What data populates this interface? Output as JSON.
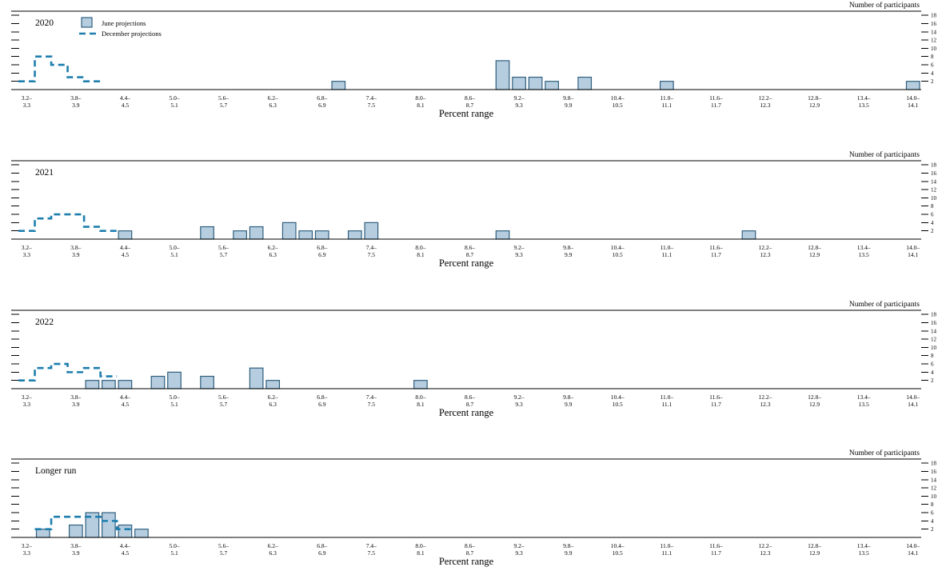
{
  "figure": {
    "right_axis_label": "Number of participants",
    "x_axis_label": "Percent range",
    "legend": [
      {
        "key": "june",
        "label": "June projections"
      },
      {
        "key": "december",
        "label": "December projections"
      }
    ],
    "colors": {
      "june_bar_fill": "#b5cddf",
      "june_bar_stroke": "#2f5f7e",
      "december_line": "#1d7eae",
      "axis": "#000000"
    },
    "y_axis": {
      "ticks": [
        2,
        4,
        6,
        8,
        10,
        12,
        14,
        16,
        18
      ],
      "max_units": 19
    },
    "x_axis": {
      "bin_start": 3.2,
      "bin_step": 0.2,
      "bin_count": 55,
      "tick_labels": [
        "3.2–3.3",
        "3.8–3.9",
        "4.4–4.5",
        "5.0–5.1",
        "5.6–5.7",
        "6.2–6.3",
        "6.8–6.9",
        "7.4–7.5",
        "8.0–8.1",
        "8.6–8.7",
        "9.2–9.3",
        "9.8–9.9",
        "10.4–10.5",
        "11.0–11.1",
        "11.6–11.7",
        "12.2–12.3",
        "12.8–12.9",
        "13.4–13.5",
        "14.0–14.1"
      ]
    }
  },
  "chart_data": [
    {
      "type": "bar",
      "title": "2020",
      "show_legend": true,
      "xlabel": "Percent range",
      "ylabel": "Number of participants",
      "ylim": [
        0,
        19
      ],
      "series": [
        {
          "name": "June projections",
          "style": "bars",
          "points": [
            {
              "range": "7.0–7.1",
              "count": 2
            },
            {
              "range": "9.0–9.1",
              "count": 7
            },
            {
              "range": "9.2–9.3",
              "count": 3
            },
            {
              "range": "9.4–9.5",
              "count": 3
            },
            {
              "range": "9.6–9.7",
              "count": 2
            },
            {
              "range": "10.0–10.1",
              "count": 3
            },
            {
              "range": "11.0–11.1",
              "count": 2
            },
            {
              "range": "14.0–14.1",
              "count": 2
            }
          ]
        },
        {
          "name": "December projections",
          "style": "dashed-step",
          "points": [
            {
              "range": "3.2–3.3",
              "count": 2
            },
            {
              "range": "3.4–3.5",
              "count": 8
            },
            {
              "range": "3.6–3.7",
              "count": 6
            },
            {
              "range": "3.8–3.9",
              "count": 3
            },
            {
              "range": "4.0–4.1",
              "count": 2
            }
          ]
        }
      ]
    },
    {
      "type": "bar",
      "title": "2021",
      "show_legend": false,
      "xlabel": "Percent range",
      "ylabel": "Number of participants",
      "ylim": [
        0,
        19
      ],
      "series": [
        {
          "name": "June projections",
          "style": "bars",
          "points": [
            {
              "range": "4.4–4.5",
              "count": 2
            },
            {
              "range": "5.4–5.5",
              "count": 3
            },
            {
              "range": "5.8–5.9",
              "count": 2
            },
            {
              "range": "6.0–6.1",
              "count": 3
            },
            {
              "range": "6.4–6.5",
              "count": 4
            },
            {
              "range": "6.6–6.7",
              "count": 2
            },
            {
              "range": "6.8–6.9",
              "count": 2
            },
            {
              "range": "7.2–7.3",
              "count": 2
            },
            {
              "range": "7.4–7.5",
              "count": 4
            },
            {
              "range": "9.0–9.1",
              "count": 2
            },
            {
              "range": "12.0–12.1",
              "count": 2
            }
          ]
        },
        {
          "name": "December projections",
          "style": "dashed-step",
          "points": [
            {
              "range": "3.2–3.3",
              "count": 2
            },
            {
              "range": "3.4–3.5",
              "count": 5
            },
            {
              "range": "3.6–3.7",
              "count": 6
            },
            {
              "range": "3.8–3.9",
              "count": 6
            },
            {
              "range": "4.0–4.1",
              "count": 3
            },
            {
              "range": "4.2–4.3",
              "count": 2
            }
          ]
        }
      ]
    },
    {
      "type": "bar",
      "title": "2022",
      "show_legend": false,
      "xlabel": "Percent range",
      "ylabel": "Number of participants",
      "ylim": [
        0,
        19
      ],
      "series": [
        {
          "name": "June projections",
          "style": "bars",
          "points": [
            {
              "range": "4.0–4.1",
              "count": 2
            },
            {
              "range": "4.2–4.3",
              "count": 2
            },
            {
              "range": "4.4–4.5",
              "count": 2
            },
            {
              "range": "4.8–4.9",
              "count": 3
            },
            {
              "range": "5.0–5.1",
              "count": 4
            },
            {
              "range": "5.4–5.5",
              "count": 3
            },
            {
              "range": "6.0–6.1",
              "count": 5
            },
            {
              "range": "6.2–6.3",
              "count": 2
            },
            {
              "range": "8.0–8.1",
              "count": 2
            }
          ]
        },
        {
          "name": "December projections",
          "style": "dashed-step",
          "points": [
            {
              "range": "3.2–3.3",
              "count": 2
            },
            {
              "range": "3.4–3.5",
              "count": 5
            },
            {
              "range": "3.6–3.7",
              "count": 6
            },
            {
              "range": "3.8–3.9",
              "count": 4
            },
            {
              "range": "4.0–4.1",
              "count": 5
            },
            {
              "range": "4.2–4.3",
              "count": 3
            }
          ]
        }
      ]
    },
    {
      "type": "bar",
      "title": "Longer run",
      "show_legend": false,
      "xlabel": "Percent range",
      "ylabel": "Number of participants",
      "ylim": [
        0,
        19
      ],
      "series": [
        {
          "name": "June projections",
          "style": "bars",
          "points": [
            {
              "range": "3.4–3.5",
              "count": 2
            },
            {
              "range": "3.8–3.9",
              "count": 3
            },
            {
              "range": "4.0–4.1",
              "count": 6
            },
            {
              "range": "4.2–4.3",
              "count": 6
            },
            {
              "range": "4.4–4.5",
              "count": 3
            },
            {
              "range": "4.6–4.7",
              "count": 2
            }
          ]
        },
        {
          "name": "December projections",
          "style": "dashed-step",
          "points": [
            {
              "range": "3.4–3.5",
              "count": 2
            },
            {
              "range": "3.6–3.7",
              "count": 5
            },
            {
              "range": "3.8–3.9",
              "count": 5
            },
            {
              "range": "4.0–4.1",
              "count": 5
            },
            {
              "range": "4.2–4.3",
              "count": 4
            },
            {
              "range": "4.4–4.5",
              "count": 2
            }
          ]
        }
      ]
    }
  ]
}
